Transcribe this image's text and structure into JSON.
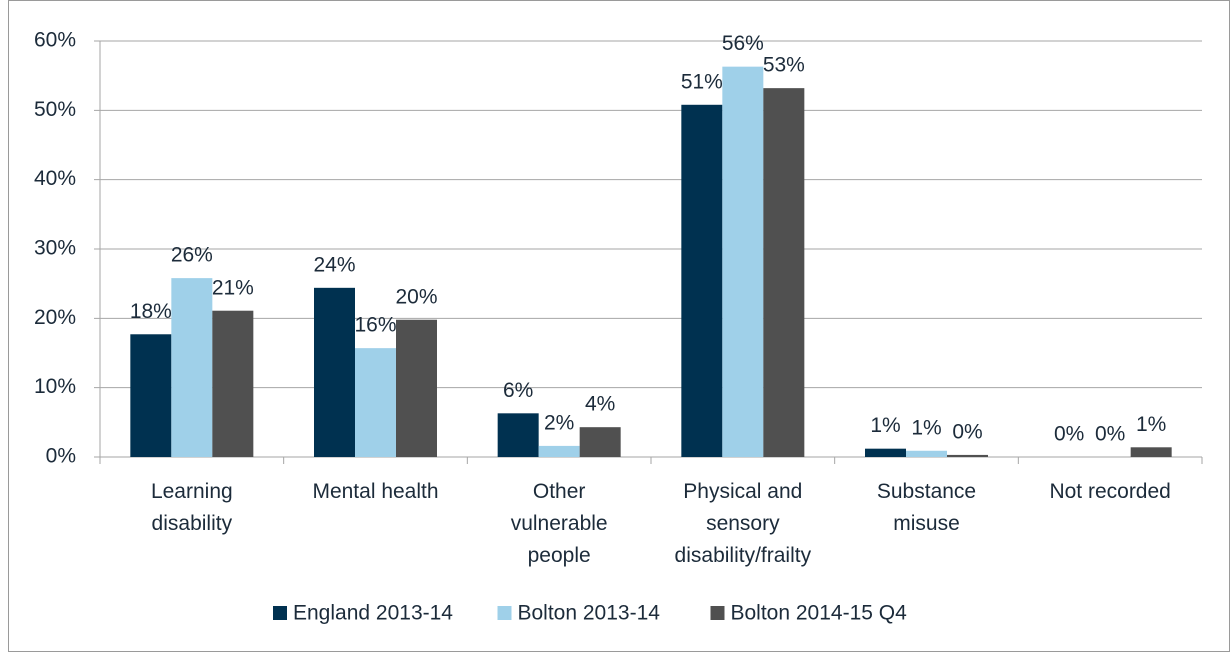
{
  "chart_data": {
    "type": "bar",
    "categories": [
      "Learning\ndisability",
      "Mental health",
      "Other\nvulnerable\npeople",
      "Physical and\nsensory\ndisability/frailty",
      "Substance\nmisuse",
      "Not recorded"
    ],
    "series": [
      {
        "name": "England 2013-14",
        "color": "#003150",
        "values": [
          17.7,
          24.4,
          6.3,
          50.8,
          1.2,
          0
        ],
        "value_labels": [
          "18%",
          "24%",
          "6%",
          "51%",
          "1%",
          "0%"
        ]
      },
      {
        "name": "Bolton 2013-14",
        "color": "#9fd0e9",
        "values": [
          25.8,
          15.7,
          1.6,
          56.3,
          0.9,
          0
        ],
        "value_labels": [
          "26%",
          "16%",
          "2%",
          "56%",
          "1%",
          "0%"
        ]
      },
      {
        "name": "Bolton 2014-15 Q4",
        "color": "#505050",
        "values": [
          21.1,
          19.8,
          4.3,
          53.2,
          0.3,
          1.4
        ],
        "value_labels": [
          "21%",
          "20%",
          "4%",
          "53%",
          "0%",
          "1%"
        ]
      }
    ],
    "ylim": [
      0,
      60
    ],
    "yticks": [
      {
        "value": 0,
        "label": "0%"
      },
      {
        "value": 10,
        "label": "10%"
      },
      {
        "value": 20,
        "label": "20%"
      },
      {
        "value": 30,
        "label": "30%"
      },
      {
        "value": 40,
        "label": "40%"
      },
      {
        "value": 50,
        "label": "50%"
      },
      {
        "value": 60,
        "label": "60%"
      }
    ],
    "grid": true,
    "legend": "bottom"
  }
}
